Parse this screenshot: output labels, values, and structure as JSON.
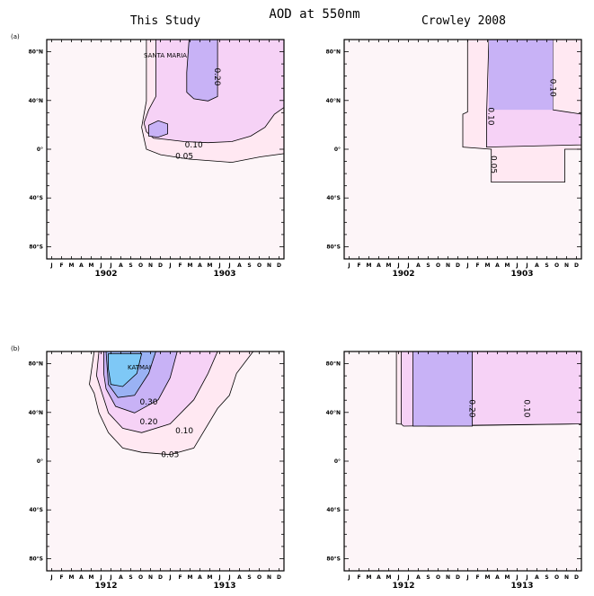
{
  "figure": {
    "main_title": "AOD at 550nm",
    "left_column_title": "This Study",
    "right_column_title": "Crowley 2008"
  },
  "colors": {
    "level_0.05": "#ffe8f2",
    "level_0.10": "#f6d2f6",
    "level_0.20": "#c8b2f6",
    "level_0.30": "#9ab2f4",
    "level_0.40": "#7ec8f6",
    "background": "#fdf5f8",
    "line": "#000000"
  },
  "chart_data": [
    {
      "type": "contour",
      "panel_label": "(a)",
      "column": "This Study",
      "annotation": "SANTA MARIA",
      "years": [
        "1902",
        "1903"
      ],
      "month_ticks": [
        "J",
        "F",
        "M",
        "A",
        "M",
        "J",
        "J",
        "A",
        "S",
        "O",
        "N",
        "D",
        "J",
        "F",
        "M",
        "A",
        "M",
        "J",
        "J",
        "A",
        "S",
        "O",
        "N",
        "D"
      ],
      "lat_ticks": [
        "80°N",
        "40°N",
        "0°",
        "40°S",
        "80°S"
      ],
      "contour_levels": [
        0.05,
        0.1,
        0.2
      ],
      "contour_labels": [
        "0.05",
        "0.10",
        "0.20"
      ]
    },
    {
      "type": "contour",
      "panel_label": "",
      "column": "Crowley 2008",
      "years": [
        "1902",
        "1903"
      ],
      "month_ticks": [
        "J",
        "F",
        "M",
        "A",
        "M",
        "J",
        "J",
        "A",
        "S",
        "O",
        "N",
        "D",
        "J",
        "F",
        "M",
        "A",
        "M",
        "J",
        "J",
        "A",
        "S",
        "O",
        "N",
        "D"
      ],
      "lat_ticks": [
        "80°N",
        "40°N",
        "0°",
        "40°S",
        "80°S"
      ],
      "contour_levels": [
        0.05,
        0.1
      ],
      "contour_labels": [
        "0.05",
        "0.10",
        "0.10"
      ]
    },
    {
      "type": "contour",
      "panel_label": "(b)",
      "column": "This Study",
      "annotation": "KATMAI",
      "years": [
        "1912",
        "1913"
      ],
      "month_ticks": [
        "J",
        "F",
        "M",
        "A",
        "M",
        "J",
        "J",
        "A",
        "S",
        "O",
        "N",
        "D",
        "J",
        "F",
        "M",
        "A",
        "M",
        "J",
        "J",
        "A",
        "S",
        "O",
        "N",
        "D"
      ],
      "lat_ticks": [
        "80°N",
        "40°N",
        "0°",
        "40°S",
        "80°S"
      ],
      "contour_levels": [
        0.05,
        0.1,
        0.2,
        0.3
      ],
      "contour_labels": [
        "0.05",
        "0.10",
        "0.20",
        "0.30"
      ]
    },
    {
      "type": "contour",
      "panel_label": "",
      "column": "Crowley 2008",
      "years": [
        "1912",
        "1913"
      ],
      "month_ticks": [
        "J",
        "F",
        "M",
        "A",
        "M",
        "J",
        "J",
        "A",
        "S",
        "O",
        "N",
        "D",
        "J",
        "F",
        "M",
        "A",
        "M",
        "J",
        "J",
        "A",
        "S",
        "O",
        "N",
        "D"
      ],
      "lat_ticks": [
        "80°N",
        "40°N",
        "0°",
        "40°S",
        "80°S"
      ],
      "contour_levels": [
        0.1,
        0.2
      ],
      "contour_labels": [
        "0.20",
        "0.10"
      ]
    }
  ]
}
